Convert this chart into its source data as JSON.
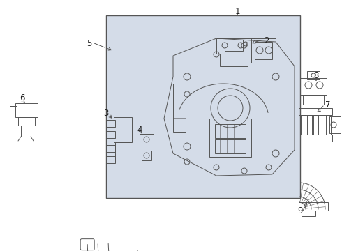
{
  "background_color": "#ffffff",
  "fig_width": 4.9,
  "fig_height": 3.6,
  "dpi": 100,
  "box_color": "#d4dce8",
  "line_color": "#555555",
  "label_color": "#222222",
  "label_fontsize": 8.5
}
